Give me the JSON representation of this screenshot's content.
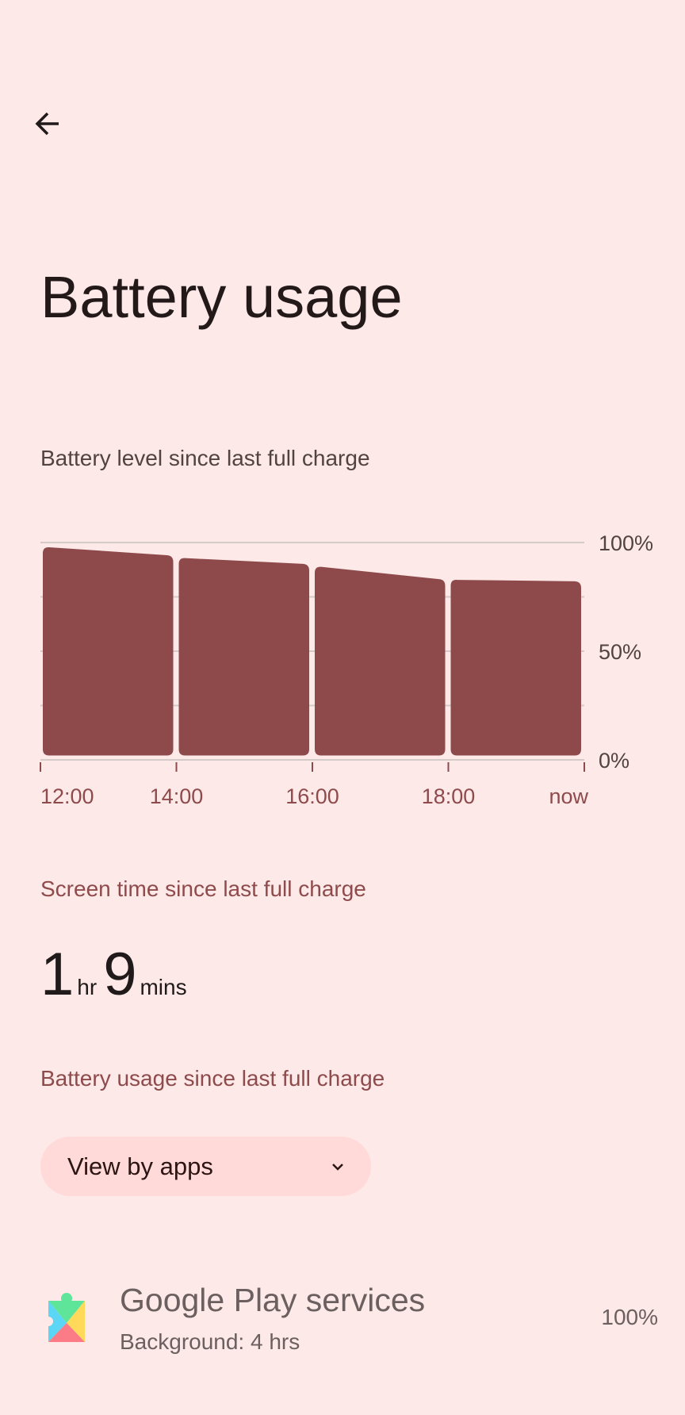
{
  "header": {
    "back_icon": "arrow-left-icon",
    "title": "Battery usage"
  },
  "chart_section": {
    "subtitle": "Battery level since last full charge"
  },
  "chart_data": {
    "type": "area",
    "title": "",
    "xlabel": "",
    "ylabel": "",
    "ylim": [
      0,
      100
    ],
    "y_ticks": [
      "100%",
      "50%",
      "0%"
    ],
    "x_ticks": [
      "12:00",
      "14:00",
      "16:00",
      "18:00",
      "now"
    ],
    "grid": true,
    "bar_color": "#8e4a4b",
    "segments": [
      {
        "from": "12:00",
        "to": "14:00",
        "start": 98,
        "end": 94
      },
      {
        "from": "14:00",
        "to": "16:00",
        "start": 93,
        "end": 90
      },
      {
        "from": "16:00",
        "to": "18:00",
        "start": 89,
        "end": 83
      },
      {
        "from": "18:00",
        "to": "now",
        "start": 83,
        "end": 82
      }
    ]
  },
  "screen_time": {
    "heading": "Screen time since last full charge",
    "hours": "1",
    "hours_unit": "hr",
    "minutes": "9",
    "minutes_unit": "mins"
  },
  "usage": {
    "heading": "Battery usage since last full charge",
    "dropdown_label": "View by apps",
    "dropdown_icon": "chevron-down-icon",
    "apps": [
      {
        "name": "Google Play services",
        "detail": "Background: 4 hrs",
        "percent": "100%",
        "icon": "google-play-services-icon"
      }
    ]
  },
  "colors": {
    "background": "#fce9e8",
    "accent": "#8f4a4c",
    "bar": "#8e4a4b",
    "pill": "#ffdad9"
  }
}
